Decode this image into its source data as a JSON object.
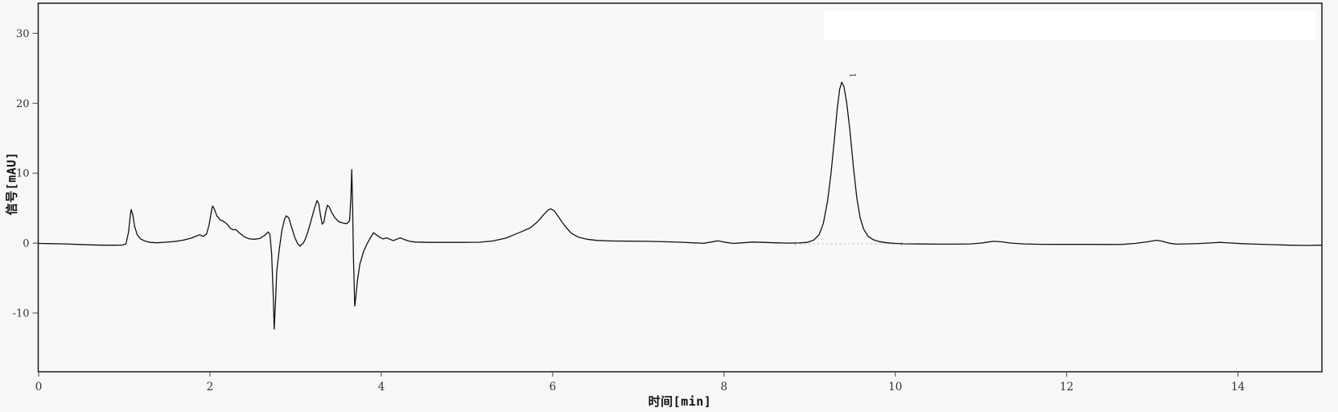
{
  "chart_data": {
    "type": "line",
    "title": "",
    "xlabel": "时间[min]",
    "ylabel": "信号[mAU]",
    "x_ticks": [
      0,
      2,
      4,
      6,
      8,
      10,
      12,
      14
    ],
    "y_ticks": [
      -10,
      0,
      10,
      20,
      30
    ],
    "xlim": [
      -0.005,
      14.98
    ],
    "ylim": [
      -18.4,
      34.3
    ],
    "grid": false,
    "legend": {
      "visible": true,
      "position": "top-right",
      "entries": []
    },
    "colors": {
      "trace": "#111111",
      "frame": "#1a1a1a",
      "tick": "#444444",
      "tick_label": "#333333",
      "background": "#f7f7f7",
      "plot_fill": "#f8f8f8",
      "legend_fill": "#ffffff",
      "integration": "#c4c4c4",
      "peak_label": "#333333"
    },
    "peaks": [
      {
        "label": "1",
        "label_t": 9.47,
        "label_v": 24.0,
        "apex_t": 9.375,
        "apex_v": 23.0
      }
    ],
    "integration": {
      "t_start": 8.83,
      "t_end": 10.07,
      "level": -0.1
    },
    "series": [
      {
        "name": "signal",
        "points": [
          [
            0,
            -0.05
          ],
          [
            0.15,
            -0.08
          ],
          [
            0.3,
            -0.12
          ],
          [
            0.45,
            -0.18
          ],
          [
            0.6,
            -0.25
          ],
          [
            0.75,
            -0.3
          ],
          [
            0.9,
            -0.3
          ],
          [
            0.98,
            -0.28
          ],
          [
            1.02,
            -0.1
          ],
          [
            1.05,
            1.6
          ],
          [
            1.07,
            4.0
          ],
          [
            1.08,
            4.8
          ],
          [
            1.1,
            4.0
          ],
          [
            1.12,
            2.4
          ],
          [
            1.15,
            1.2
          ],
          [
            1.19,
            0.6
          ],
          [
            1.24,
            0.3
          ],
          [
            1.3,
            0.1
          ],
          [
            1.38,
            0.05
          ],
          [
            1.48,
            0.12
          ],
          [
            1.58,
            0.22
          ],
          [
            1.68,
            0.4
          ],
          [
            1.78,
            0.7
          ],
          [
            1.84,
            1.0
          ],
          [
            1.88,
            1.2
          ],
          [
            1.92,
            0.95
          ],
          [
            1.96,
            1.3
          ],
          [
            1.99,
            2.6
          ],
          [
            2.02,
            4.8
          ],
          [
            2.03,
            5.3
          ],
          [
            2.05,
            4.9
          ],
          [
            2.08,
            3.9
          ],
          [
            2.12,
            3.3
          ],
          [
            2.16,
            3.1
          ],
          [
            2.2,
            2.7
          ],
          [
            2.24,
            2.1
          ],
          [
            2.27,
            1.9
          ],
          [
            2.3,
            1.95
          ],
          [
            2.34,
            1.5
          ],
          [
            2.4,
            0.9
          ],
          [
            2.46,
            0.6
          ],
          [
            2.52,
            0.55
          ],
          [
            2.58,
            0.65
          ],
          [
            2.64,
            1.1
          ],
          [
            2.68,
            1.6
          ],
          [
            2.7,
            1.2
          ],
          [
            2.72,
            -1.5
          ],
          [
            2.74,
            -8.0
          ],
          [
            2.75,
            -12.3
          ],
          [
            2.765,
            -8.5
          ],
          [
            2.78,
            -4.0
          ],
          [
            2.81,
            -0.8
          ],
          [
            2.84,
            1.8
          ],
          [
            2.87,
            3.4
          ],
          [
            2.89,
            3.9
          ],
          [
            2.92,
            3.6
          ],
          [
            2.95,
            2.4
          ],
          [
            2.99,
            0.8
          ],
          [
            3.02,
            0.0
          ],
          [
            3.05,
            -0.45
          ],
          [
            3.07,
            -0.2
          ],
          [
            3.09,
            0.0
          ],
          [
            3.11,
            0.5
          ],
          [
            3.14,
            1.5
          ],
          [
            3.18,
            3.2
          ],
          [
            3.22,
            5.0
          ],
          [
            3.25,
            6.1
          ],
          [
            3.27,
            5.6
          ],
          [
            3.29,
            4.0
          ],
          [
            3.31,
            2.7
          ],
          [
            3.33,
            3.0
          ],
          [
            3.35,
            4.4
          ],
          [
            3.37,
            5.4
          ],
          [
            3.39,
            5.2
          ],
          [
            3.42,
            4.4
          ],
          [
            3.46,
            3.6
          ],
          [
            3.51,
            3.0
          ],
          [
            3.56,
            2.85
          ],
          [
            3.6,
            2.8
          ],
          [
            3.63,
            3.2
          ],
          [
            3.645,
            6.5
          ],
          [
            3.655,
            10.5
          ],
          [
            3.665,
            5.0
          ],
          [
            3.675,
            -2.0
          ],
          [
            3.69,
            -9.0
          ],
          [
            3.7,
            -8.0
          ],
          [
            3.72,
            -5.5
          ],
          [
            3.75,
            -3.0
          ],
          [
            3.79,
            -1.3
          ],
          [
            3.83,
            -0.2
          ],
          [
            3.87,
            0.7
          ],
          [
            3.91,
            1.5
          ],
          [
            3.94,
            1.2
          ],
          [
            3.98,
            0.85
          ],
          [
            4.02,
            0.6
          ],
          [
            4.06,
            0.75
          ],
          [
            4.1,
            0.55
          ],
          [
            4.14,
            0.35
          ],
          [
            4.18,
            0.55
          ],
          [
            4.22,
            0.75
          ],
          [
            4.27,
            0.5
          ],
          [
            4.33,
            0.25
          ],
          [
            4.4,
            0.15
          ],
          [
            4.55,
            0.1
          ],
          [
            4.75,
            0.1
          ],
          [
            4.95,
            0.1
          ],
          [
            5.15,
            0.12
          ],
          [
            5.3,
            0.3
          ],
          [
            5.45,
            0.7
          ],
          [
            5.55,
            1.2
          ],
          [
            5.65,
            1.7
          ],
          [
            5.74,
            2.2
          ],
          [
            5.82,
            3.0
          ],
          [
            5.89,
            4.0
          ],
          [
            5.95,
            4.75
          ],
          [
            5.98,
            4.9
          ],
          [
            6.02,
            4.6
          ],
          [
            6.06,
            3.9
          ],
          [
            6.11,
            3.0
          ],
          [
            6.16,
            2.2
          ],
          [
            6.22,
            1.4
          ],
          [
            6.3,
            0.85
          ],
          [
            6.4,
            0.55
          ],
          [
            6.52,
            0.38
          ],
          [
            6.7,
            0.3
          ],
          [
            6.9,
            0.28
          ],
          [
            7.1,
            0.25
          ],
          [
            7.3,
            0.2
          ],
          [
            7.5,
            0.12
          ],
          [
            7.65,
            0.03
          ],
          [
            7.76,
            -0.03
          ],
          [
            7.85,
            0.15
          ],
          [
            7.93,
            0.32
          ],
          [
            8.02,
            0.1
          ],
          [
            8.11,
            -0.05
          ],
          [
            8.22,
            0.05
          ],
          [
            8.33,
            0.15
          ],
          [
            8.45,
            0.1
          ],
          [
            8.6,
            0.04
          ],
          [
            8.75,
            0.0
          ],
          [
            8.87,
            0.02
          ],
          [
            8.97,
            0.1
          ],
          [
            9.05,
            0.45
          ],
          [
            9.11,
            1.2
          ],
          [
            9.16,
            2.8
          ],
          [
            9.21,
            6.0
          ],
          [
            9.25,
            10.0
          ],
          [
            9.29,
            15.0
          ],
          [
            9.32,
            19.0
          ],
          [
            9.35,
            22.0
          ],
          [
            9.375,
            23.0
          ],
          [
            9.4,
            22.4
          ],
          [
            9.43,
            20.3
          ],
          [
            9.47,
            16.2
          ],
          [
            9.51,
            11.0
          ],
          [
            9.55,
            6.5
          ],
          [
            9.59,
            3.6
          ],
          [
            9.63,
            2.0
          ],
          [
            9.68,
            1.0
          ],
          [
            9.74,
            0.5
          ],
          [
            9.81,
            0.22
          ],
          [
            9.9,
            0.05
          ],
          [
            10.0,
            -0.05
          ],
          [
            10.1,
            -0.1
          ],
          [
            10.3,
            -0.13
          ],
          [
            10.5,
            -0.15
          ],
          [
            10.7,
            -0.15
          ],
          [
            10.88,
            -0.12
          ],
          [
            11.0,
            0.0
          ],
          [
            11.08,
            0.15
          ],
          [
            11.15,
            0.25
          ],
          [
            11.24,
            0.18
          ],
          [
            11.35,
            0.0
          ],
          [
            11.5,
            -0.12
          ],
          [
            11.7,
            -0.17
          ],
          [
            11.9,
            -0.18
          ],
          [
            12.1,
            -0.18
          ],
          [
            12.3,
            -0.18
          ],
          [
            12.5,
            -0.2
          ],
          [
            12.65,
            -0.18
          ],
          [
            12.8,
            -0.05
          ],
          [
            12.95,
            0.2
          ],
          [
            13.05,
            0.4
          ],
          [
            13.12,
            0.25
          ],
          [
            13.2,
            -0.02
          ],
          [
            13.28,
            -0.15
          ],
          [
            13.4,
            -0.12
          ],
          [
            13.55,
            -0.06
          ],
          [
            13.68,
            0.02
          ],
          [
            13.79,
            0.1
          ],
          [
            13.9,
            0.02
          ],
          [
            14.05,
            -0.08
          ],
          [
            14.2,
            -0.15
          ],
          [
            14.4,
            -0.22
          ],
          [
            14.6,
            -0.3
          ],
          [
            14.8,
            -0.33
          ],
          [
            14.97,
            -0.3
          ]
        ]
      }
    ]
  }
}
